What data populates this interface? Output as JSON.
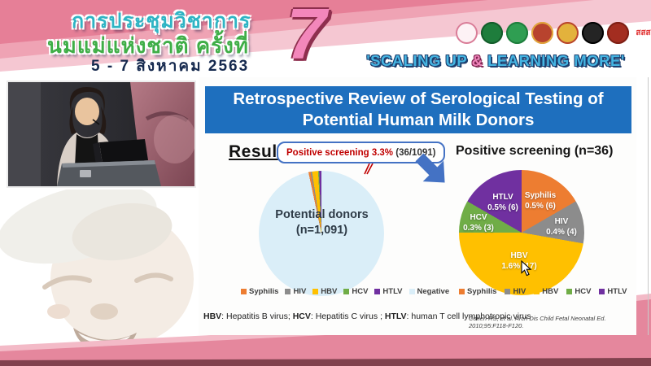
{
  "colors": {
    "slide_title_bar": "#1e6fbe",
    "callout_red": "#c00000",
    "callout_border": "#4472c4",
    "arrow_blue": "#4472c4",
    "band_pink": "#e5879d",
    "band_pink_light": "#f3bac7",
    "band_dark_strip": "#81414e",
    "header_pink_dark": "#e67f97",
    "header_pink_mid": "#efa3b4",
    "header_pink_light": "#f5c7d2",
    "seven_pink": "#f387bb",
    "thai_title_teal": "#2fb4c4",
    "thai_title_green": "#3fae47",
    "tagline_blue": "#45b5e2",
    "tagline_amp_pink": "#ef83b9"
  },
  "header": {
    "title_line1": "การประชุมวิชาการ",
    "title_line2": "นมแม่แห่งชาติ ครั้งที่",
    "date_line": "5 - 7 สิงหาคม 2563",
    "edition_number": "7",
    "tagline_open": "'SCALING UP ",
    "tagline_amp": "&",
    "tagline_close": " LEARNING MORE'",
    "logos": [
      {
        "name": "mother-child-foundation-logo",
        "bg": "#fdf2f5",
        "ring": "#d97c97",
        "text": ""
      },
      {
        "name": "health-department-logo",
        "bg": "#1e7d3c",
        "ring": "#145c2b",
        "text": ""
      },
      {
        "name": "public-health-ministry-logo",
        "bg": "#2f9e52",
        "ring": "#1e7d3c",
        "text": ""
      },
      {
        "name": "royal-college-emblem-logo",
        "bg": "#b8432e",
        "ring": "#e3a93c",
        "text": ""
      },
      {
        "name": "royal-institute-emblem-logo",
        "bg": "#e3b23c",
        "ring": "#b8432e",
        "text": ""
      },
      {
        "name": "pediatric-society-logo",
        "bg": "#242424",
        "ring": "#000000",
        "text": ""
      },
      {
        "name": "nursing-council-logo",
        "bg": "#a32d20",
        "ring": "#7d1f15",
        "text": ""
      },
      {
        "name": "thai-health-promotion-logo",
        "bg": "#ffffff",
        "ring": "#ffffff",
        "text": "สสส"
      }
    ]
  },
  "slide": {
    "title_line1": "Retrospective Review of Serological Testing of",
    "title_line2": "Potential Human Milk Donors",
    "result_label": "Result",
    "callout_bold": "Positive screening 3.3%",
    "callout_rest": " (36/1091)",
    "footnote": [
      {
        "abbr": "HBV",
        "rest": ": Hepatitis B virus; "
      },
      {
        "abbr": "HCV",
        "rest": ": Hepatitis C virus ; "
      },
      {
        "abbr": "HTLV",
        "rest": ": human T cell lymphotropic virus"
      }
    ],
    "citation": "Cohen RS, et al. Arch Dis Child Fetal Neonatal Ed. 2010;95:F118-F120."
  },
  "chart_data": [
    {
      "type": "pie",
      "name": "potential-donors-pie",
      "center_label_line1": "Potential donors",
      "center_label_line2": "(n=1,091)",
      "total": 1091,
      "start_angle_deg": 348,
      "annotation": "Positive screening 3.3% (36/1091)",
      "slices": [
        {
          "label": "Syphilis",
          "value": 6,
          "color": "#ed7d31"
        },
        {
          "label": "HIV",
          "value": 4,
          "color": "#8c8c8c"
        },
        {
          "label": "HBV",
          "value": 17,
          "color": "#ffc000"
        },
        {
          "label": "HCV",
          "value": 3,
          "color": "#70ad47"
        },
        {
          "label": "HTLV",
          "value": 6,
          "color": "#7030a0"
        },
        {
          "label": "Negative",
          "value": 1055,
          "color": "#daeef8"
        }
      ],
      "legend_position": "bottom"
    },
    {
      "type": "pie",
      "name": "positive-screening-pie",
      "title": "Positive screening (n=36)",
      "total": 36,
      "start_angle_deg": 0,
      "slices": [
        {
          "label": "Syphilis",
          "value": 6,
          "pct_label": "0.5% (6)",
          "color": "#ed7d31"
        },
        {
          "label": "HIV",
          "value": 4,
          "pct_label": "0.4% (4)",
          "color": "#8c8c8c"
        },
        {
          "label": "HBV",
          "value": 17,
          "pct_label": "1.6% (17)",
          "color": "#ffc000"
        },
        {
          "label": "HCV",
          "value": 3,
          "pct_label": "0.3% (3)",
          "color": "#70ad47"
        },
        {
          "label": "HTLV",
          "value": 6,
          "pct_label": "0.5% (6)",
          "color": "#7030a0"
        }
      ],
      "legend_position": "bottom"
    }
  ]
}
